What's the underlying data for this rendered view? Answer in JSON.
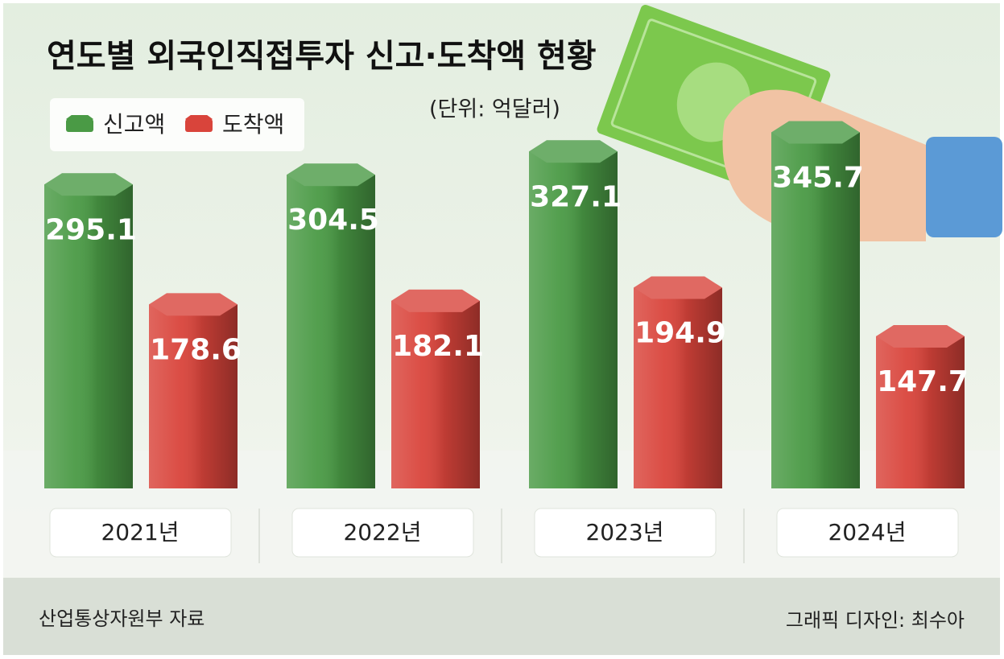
{
  "chart_data": {
    "type": "bar",
    "title": "연도별 외국인직접투자 신고·도착액 현황",
    "subtitle": "(단위: 억달러)",
    "categories": [
      "2021년",
      "2022년",
      "2023년",
      "2024년"
    ],
    "series": [
      {
        "name": "신고액",
        "color": "#4a9a45",
        "values": [
          295.1,
          304.5,
          327.1,
          345.7
        ]
      },
      {
        "name": "도착액",
        "color": "#d9443b",
        "values": [
          178.6,
          182.1,
          194.9,
          147.7
        ]
      }
    ],
    "source": "산업통상자원부 자료",
    "credit": "그래픽 디자인: 최수아"
  }
}
